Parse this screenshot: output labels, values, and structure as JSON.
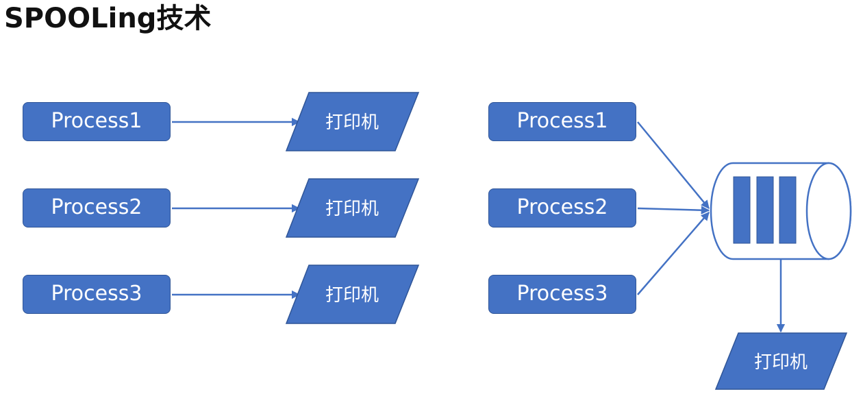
{
  "title": "SPOOLing技术",
  "colors": {
    "box_fill": "#4472c4",
    "box_border": "#2f5597",
    "arrow": "#4472c4",
    "text_on_box": "#ffffff"
  },
  "left_diagram": {
    "processes": [
      "Process1",
      "Process2",
      "Process3"
    ],
    "printers": [
      "打印机",
      "打印机",
      "打印机"
    ]
  },
  "right_diagram": {
    "processes": [
      "Process1",
      "Process2",
      "Process3"
    ],
    "spool_buffer_slots": 3,
    "printer": "打印机"
  }
}
